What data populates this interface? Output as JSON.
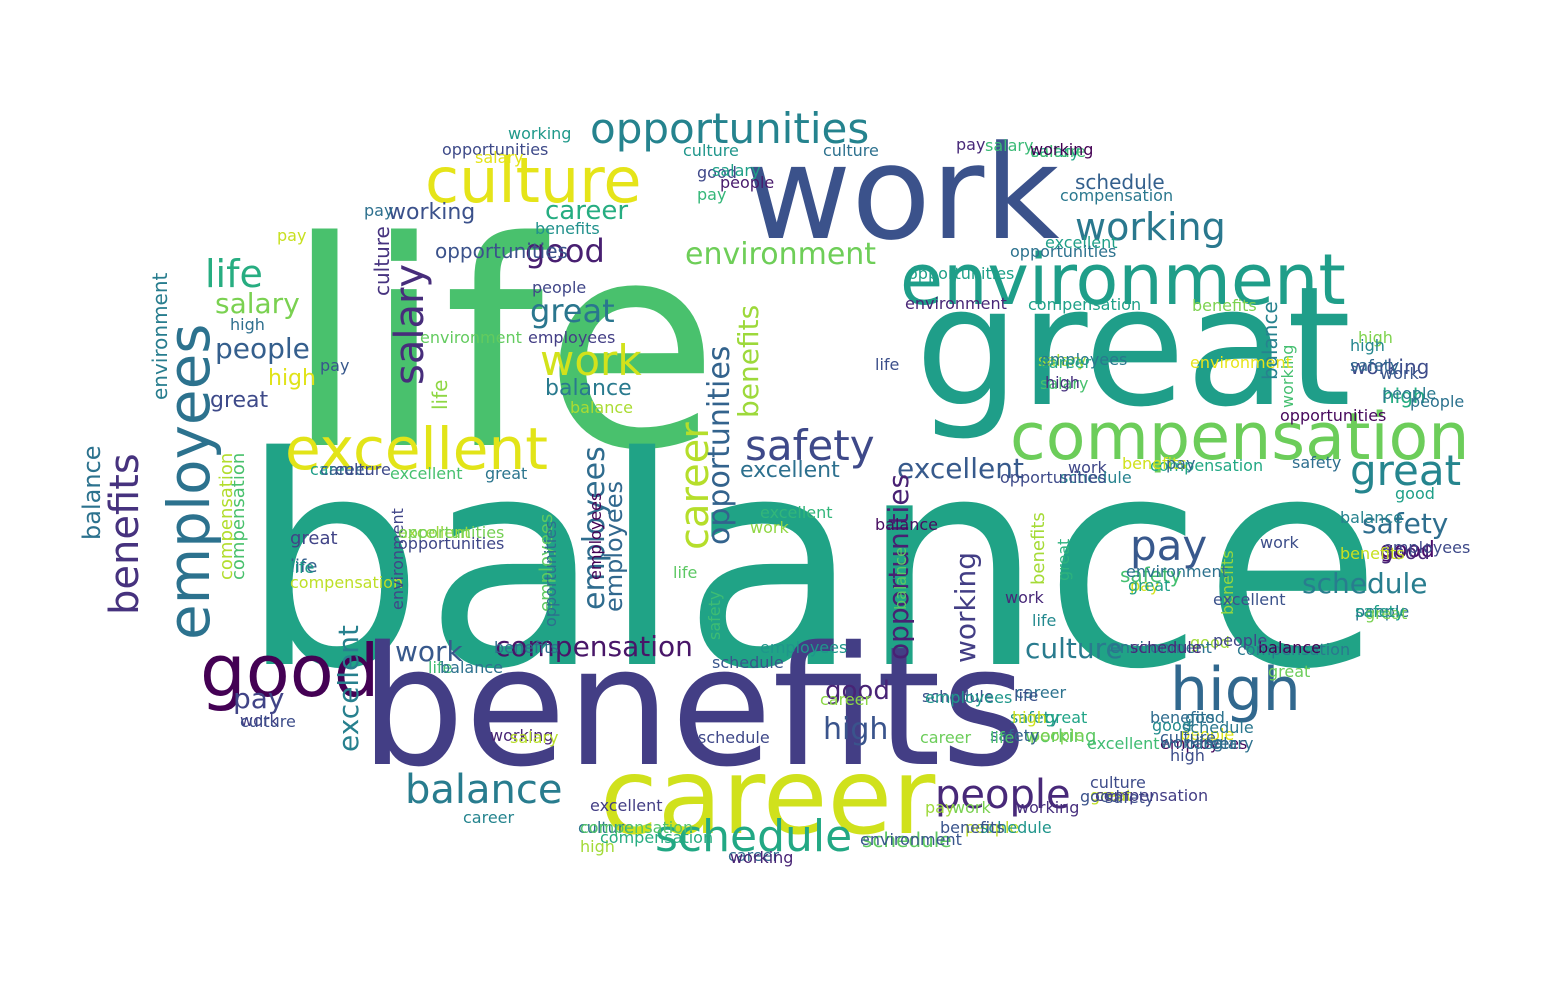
{
  "wordcloud": {
    "words": [
      {
        "text": "life",
        "color": "#49c16d"
      },
      {
        "text": "balance",
        "color": "#20a386"
      },
      {
        "text": "great",
        "color": "#1f9e89"
      },
      {
        "text": "work",
        "color": "#3b528b"
      },
      {
        "text": "benefits",
        "color": "#433e85"
      },
      {
        "text": "career",
        "color": "#d0e11c"
      },
      {
        "text": "compensation",
        "color": "#6ccd5a"
      },
      {
        "text": "environment",
        "color": "#1f9e89"
      },
      {
        "text": "culture",
        "color": "#e5e419"
      },
      {
        "text": "opportunities",
        "color": "#25838e"
      },
      {
        "text": "excellent",
        "color": "#e2e418"
      },
      {
        "text": "employees",
        "color": "#2c728e"
      },
      {
        "text": "good",
        "color": "#440154"
      },
      {
        "text": "high",
        "color": "#31688e"
      },
      {
        "text": "safety",
        "color": "#3e4989"
      },
      {
        "text": "working",
        "color": "#2a788e"
      },
      {
        "text": "schedule",
        "color": "#22a884"
      },
      {
        "text": "people",
        "color": "#482979"
      },
      {
        "text": "balance",
        "color": "#287c8e"
      },
      {
        "text": "pay",
        "color": "#38588c"
      },
      {
        "text": "great",
        "color": "#25858e"
      },
      {
        "text": "benefits",
        "color": "#46327e"
      },
      {
        "text": "employees",
        "color": "#2f6c8e"
      },
      {
        "text": "salary",
        "color": "#472d7b"
      },
      {
        "text": "career",
        "color": "#b5de2b"
      },
      {
        "text": "life",
        "color": "#27ad81"
      },
      {
        "text": "salary",
        "color": "#7ad151"
      },
      {
        "text": "people",
        "color": "#355f8d"
      },
      {
        "text": "high",
        "color": "#e0e31a"
      },
      {
        "text": "great",
        "color": "#3e4a89"
      },
      {
        "text": "work",
        "color": "#d2e21b"
      },
      {
        "text": "good",
        "color": "#481f71"
      },
      {
        "text": "career",
        "color": "#26ad81"
      },
      {
        "text": "working",
        "color": "#3b518b"
      },
      {
        "text": "culture",
        "color": "#46337f"
      },
      {
        "text": "opportunities",
        "color": "#33638d"
      },
      {
        "text": "benefits",
        "color": "#9dd93b"
      },
      {
        "text": "environment",
        "color": "#6ece58"
      },
      {
        "text": "good",
        "color": "#482475"
      },
      {
        "text": "balance",
        "color": "#297a8e"
      },
      {
        "text": "balance",
        "color": "#aadc32"
      },
      {
        "text": "employees",
        "color": "#433e85"
      },
      {
        "text": "people",
        "color": "#404688"
      },
      {
        "text": "excellent",
        "color": "#9bd93c"
      },
      {
        "text": "safety",
        "color": "#2e6e8e"
      },
      {
        "text": "great",
        "color": "#2a768e"
      },
      {
        "text": "compensation",
        "color": "#b2dd2d"
      },
      {
        "text": "pay",
        "color": "#38588c"
      },
      {
        "text": "safety",
        "color": "#44bf70"
      },
      {
        "text": "schedule",
        "color": "#287d8e"
      },
      {
        "text": "good",
        "color": "#4a0c6b"
      },
      {
        "text": "excellent",
        "color": "#2d708e"
      },
      {
        "text": "excellent",
        "color": "#375a8c"
      },
      {
        "text": "high",
        "color": "#3a548c"
      },
      {
        "text": "pay",
        "color": "#414487"
      },
      {
        "text": "working",
        "color": "#433e85"
      },
      {
        "text": "culture",
        "color": "#297b8e"
      },
      {
        "text": "compensation",
        "color": "#481668"
      },
      {
        "text": "work",
        "color": "#38598c"
      },
      {
        "text": "life",
        "color": "#3fbc73"
      },
      {
        "text": "employees",
        "color": "#5ec962"
      },
      {
        "text": "employees",
        "color": "#31688e"
      },
      {
        "text": "opportunities",
        "color": "#482173"
      },
      {
        "text": "environment",
        "color": "#287d8e"
      },
      {
        "text": "benefits",
        "color": "#a5db36"
      },
      {
        "text": "excellent",
        "color": "#46c06f"
      },
      {
        "text": "great",
        "color": "#2b758e"
      },
      {
        "text": "great",
        "color": "#414487"
      },
      {
        "text": "life",
        "color": "#35608d"
      },
      {
        "text": "compensation",
        "color": "#bddf26"
      },
      {
        "text": "compensation",
        "color": "#4ac16d"
      },
      {
        "text": "balance",
        "color": "#2c728e"
      },
      {
        "text": "balance",
        "color": "#26828e"
      },
      {
        "text": "environment",
        "color": "#63cb5f"
      },
      {
        "text": "environment",
        "color": "#404588"
      },
      {
        "text": "life",
        "color": "#8fd744"
      },
      {
        "text": "excellent",
        "color": "#27808e"
      },
      {
        "text": "career",
        "color": "#1f9e89"
      },
      {
        "text": "working",
        "color": "#3e4c8a"
      },
      {
        "text": "working",
        "color": "#5cc863"
      },
      {
        "text": "people",
        "color": "#2c718e"
      },
      {
        "text": "people",
        "color": "#c0df25"
      },
      {
        "text": "work",
        "color": "#433d84"
      },
      {
        "text": "work",
        "color": "#3f4788"
      },
      {
        "text": "opportunities",
        "color": "#3b528b"
      },
      {
        "text": "opportunities",
        "color": "#3e4a89"
      },
      {
        "text": "culture",
        "color": "#1f968b"
      },
      {
        "text": "culture",
        "color": "#2d718e"
      },
      {
        "text": "salary",
        "color": "#22a785"
      },
      {
        "text": "schedule",
        "color": "#34608d"
      },
      {
        "text": "compensation",
        "color": "#2a788e"
      },
      {
        "text": "salary",
        "color": "#48c16e"
      },
      {
        "text": "salary",
        "color": "#a8db34"
      },
      {
        "text": "high",
        "color": "#2e6f8e"
      },
      {
        "text": "high",
        "color": "#7fd34e"
      },
      {
        "text": "high",
        "color": "#25ac82"
      },
      {
        "text": "good",
        "color": "#482677"
      },
      {
        "text": "good",
        "color": "#3f4889"
      },
      {
        "text": "good",
        "color": "#a0da39"
      },
      {
        "text": "pay",
        "color": "#482979"
      },
      {
        "text": "pay",
        "color": "#35b779"
      },
      {
        "text": "pay",
        "color": "#d5e21a"
      },
      {
        "text": "schedule",
        "color": "#3f4889"
      },
      {
        "text": "schedule",
        "color": "#39568c"
      },
      {
        "text": "schedule",
        "color": "#5ec962"
      },
      {
        "text": "schedule",
        "color": "#26828e"
      },
      {
        "text": "benefits",
        "color": "#2f6c8e"
      },
      {
        "text": "benefits",
        "color": "#21918c"
      },
      {
        "text": "benefits",
        "color": "#7cd250"
      },
      {
        "text": "career",
        "color": "#34608d"
      },
      {
        "text": "career",
        "color": "#8bd646"
      },
      {
        "text": "career",
        "color": "#2c728e"
      },
      {
        "text": "career",
        "color": "#306a8e"
      },
      {
        "text": "safety",
        "color": "#31688e"
      },
      {
        "text": "safety",
        "color": "#3dbc74"
      },
      {
        "text": "safety",
        "color": "#20928c"
      },
      {
        "text": "employees",
        "color": "#29798e"
      },
      {
        "text": "employees",
        "color": "#440154"
      },
      {
        "text": "working",
        "color": "#45bf70"
      },
      {
        "text": "working",
        "color": "#1f998a"
      },
      {
        "text": "working",
        "color": "#482475"
      },
      {
        "text": "people",
        "color": "#7cd250"
      },
      {
        "text": "people",
        "color": "#dde318"
      },
      {
        "text": "culture",
        "color": "#3d4d8a"
      },
      {
        "text": "culture",
        "color": "#40bd72"
      },
      {
        "text": "culture",
        "color": "#3e4c8a"
      },
      {
        "text": "great",
        "color": "#2db27d"
      },
      {
        "text": "great",
        "color": "#c2df23"
      },
      {
        "text": "life",
        "color": "#5cc863"
      },
      {
        "text": "life",
        "color": "#1e9c89"
      },
      {
        "text": "life",
        "color": "#3c4f8a"
      },
      {
        "text": "life",
        "color": "#23898e"
      },
      {
        "text": "environment",
        "color": "#2c728e"
      },
      {
        "text": "environment",
        "color": "#482576"
      },
      {
        "text": "environment",
        "color": "#e7e419"
      },
      {
        "text": "compensation",
        "color": "#1fa188"
      },
      {
        "text": "compensation",
        "color": "#22a884"
      },
      {
        "text": "compensation",
        "color": "#2a788e"
      },
      {
        "text": "excellent",
        "color": "#32b67a"
      },
      {
        "text": "excellent",
        "color": "#1f9f88"
      },
      {
        "text": "opportunities",
        "color": "#2e6e8e"
      },
      {
        "text": "opportunities",
        "color": "#75d054"
      },
      {
        "text": "opportunities",
        "color": "#3f4788"
      },
      {
        "text": "benefits",
        "color": "#97d83f"
      },
      {
        "text": "balance",
        "color": "#5ac864"
      },
      {
        "text": "balance",
        "color": "#470d60"
      },
      {
        "text": "balance",
        "color": "#26828e"
      },
      {
        "text": "work",
        "color": "#90d743"
      },
      {
        "text": "work",
        "color": "#3d4e8a"
      },
      {
        "text": "work",
        "color": "#482878"
      },
      {
        "text": "pay",
        "color": "#c8e020"
      },
      {
        "text": "pay",
        "color": "#2d708e"
      },
      {
        "text": "salary",
        "color": "#e3e418"
      },
      {
        "text": "salary",
        "color": "#1fa088"
      },
      {
        "text": "salary",
        "color": "#3aba76"
      },
      {
        "text": "high",
        "color": "#46317e"
      },
      {
        "text": "high",
        "color": "#3d4d8a"
      },
      {
        "text": "high",
        "color": "#a2da37"
      },
      {
        "text": "good",
        "color": "#3b528b"
      },
      {
        "text": "good",
        "color": "#1fa088"
      },
      {
        "text": "people",
        "color": "#2c728e"
      },
      {
        "text": "people",
        "color": "#481a6c"
      },
      {
        "text": "employees",
        "color": "#3e4989"
      },
      {
        "text": "employees",
        "color": "#46085c"
      },
      {
        "text": "schedule",
        "color": "#3b518b"
      },
      {
        "text": "schedule",
        "color": "#1f958b"
      },
      {
        "text": "career",
        "color": "#6ccd5a"
      },
      {
        "text": "career",
        "color": "#25848e"
      },
      {
        "text": "culture",
        "color": "#3e4a89"
      },
      {
        "text": "culture",
        "color": "#2c738e"
      },
      {
        "text": "safety",
        "color": "#3d4e8a"
      },
      {
        "text": "safety",
        "color": "#33638d"
      },
      {
        "text": "great",
        "color": "#7ad151"
      },
      {
        "text": "great",
        "color": "#20a486"
      },
      {
        "text": "working",
        "color": "#472f7d"
      },
      {
        "text": "working",
        "color": "#31688e"
      },
      {
        "text": "working",
        "color": "#482475"
      },
      {
        "text": "environment",
        "color": "#39558c"
      },
      {
        "text": "environment",
        "color": "#2c718e"
      },
      {
        "text": "compensation",
        "color": "#52c569"
      },
      {
        "text": "compensation",
        "color": "#433d84"
      },
      {
        "text": "life",
        "color": "#4cc26c"
      },
      {
        "text": "life",
        "color": "#3b528b"
      },
      {
        "text": "excellent",
        "color": "#433e85"
      },
      {
        "text": "excellent",
        "color": "#3fbc73"
      },
      {
        "text": "opportunities",
        "color": "#1fa088"
      },
      {
        "text": "opportunities",
        "color": "#2c728e"
      },
      {
        "text": "benefits",
        "color": "#d0e11c"
      },
      {
        "text": "benefits",
        "color": "#2e6e8e"
      },
      {
        "text": "balance",
        "color": "#2d718e"
      },
      {
        "text": "balance",
        "color": "#440154"
      },
      {
        "text": "pay",
        "color": "#30698e"
      },
      {
        "text": "pay",
        "color": "#9dd93b"
      },
      {
        "text": "salary",
        "color": "#b8de29"
      },
      {
        "text": "salary",
        "color": "#2d708e"
      },
      {
        "text": "high",
        "color": "#24868e"
      },
      {
        "text": "high",
        "color": "#cde11d"
      },
      {
        "text": "good",
        "color": "#228c8d"
      },
      {
        "text": "good",
        "color": "#2c728e"
      },
      {
        "text": "people",
        "color": "#29798e"
      },
      {
        "text": "people",
        "color": "#404688"
      },
      {
        "text": "employees",
        "color": "#1f978b"
      },
      {
        "text": "schedule",
        "color": "#482979"
      },
      {
        "text": "schedule",
        "color": "#2a778e"
      },
      {
        "text": "career",
        "color": "#2e6f8e"
      },
      {
        "text": "career",
        "color": "#22a884"
      },
      {
        "text": "culture",
        "color": "#355e8d"
      },
      {
        "text": "work",
        "color": "#39568c"
      },
      {
        "text": "work",
        "color": "#7ad151"
      },
      {
        "text": "great",
        "color": "#1fa188"
      },
      {
        "text": "great",
        "color": "#6ccd5a"
      },
      {
        "text": "benefits",
        "color": "#3a548c"
      },
      {
        "text": "benefits",
        "color": "#c8e020"
      },
      {
        "text": "safety",
        "color": "#2e6e8e"
      },
      {
        "text": "safety",
        "color": "#1f9e89"
      },
      {
        "text": "excellent",
        "color": "#3b528b"
      },
      {
        "text": "working",
        "color": "#440154"
      },
      {
        "text": "opportunities",
        "color": "#3e4a89"
      },
      {
        "text": "opportunities",
        "color": "#46085c"
      },
      {
        "text": "employees",
        "color": "#1f968b"
      },
      {
        "text": "compensation",
        "color": "#27ad81"
      }
    ]
  }
}
